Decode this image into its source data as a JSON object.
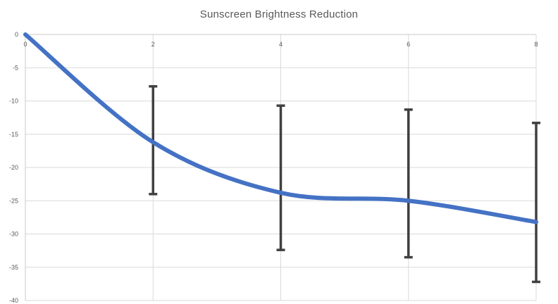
{
  "chart_data": {
    "type": "line",
    "title": "Sunscreen Brightness Reduction",
    "xlabel": "",
    "ylabel": "",
    "x": [
      0,
      2,
      4,
      6,
      8
    ],
    "xlim": [
      0,
      8
    ],
    "ylim": [
      -40,
      0
    ],
    "x_ticks": [
      0,
      2,
      4,
      6,
      8
    ],
    "y_ticks": [
      0,
      -5,
      -10,
      -15,
      -20,
      -25,
      -30,
      -35,
      -40
    ],
    "x_tick_labels": [
      "0",
      "2",
      "4",
      "6",
      "8"
    ],
    "y_tick_labels": [
      "0",
      "-5",
      "-10",
      "-15",
      "-20",
      "-25",
      "-30",
      "-35",
      "-40"
    ],
    "grid": true,
    "smooth": true,
    "series": [
      {
        "values": [
          0,
          -16.2,
          -23.8,
          -25.0,
          -28.2
        ],
        "error_bars": [
          {
            "low": 0,
            "high": 0
          },
          {
            "low": -24.0,
            "high": -7.8
          },
          {
            "low": -32.4,
            "high": -10.7
          },
          {
            "low": -33.5,
            "high": -11.3
          },
          {
            "low": -37.2,
            "high": -13.3
          }
        ],
        "color": "#4472c4"
      }
    ],
    "error_bar_color": "#404040"
  }
}
